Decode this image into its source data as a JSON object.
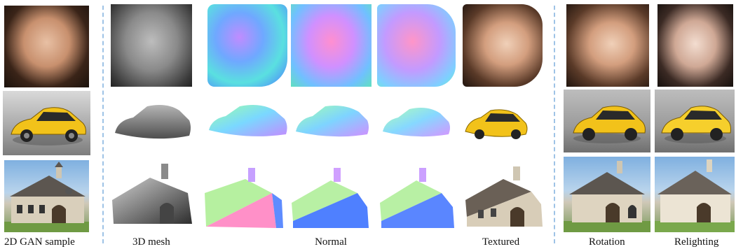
{
  "captions": {
    "sample": "2D GAN sample",
    "mesh": "3D mesh",
    "normal": "Normal",
    "textured": "Textured",
    "rotation": "Rotation",
    "relighting": "Relighting"
  },
  "colors": {
    "divider": "#9ec3e6",
    "car_yellow": "#f2c21a",
    "grass": "#6f9a43"
  }
}
